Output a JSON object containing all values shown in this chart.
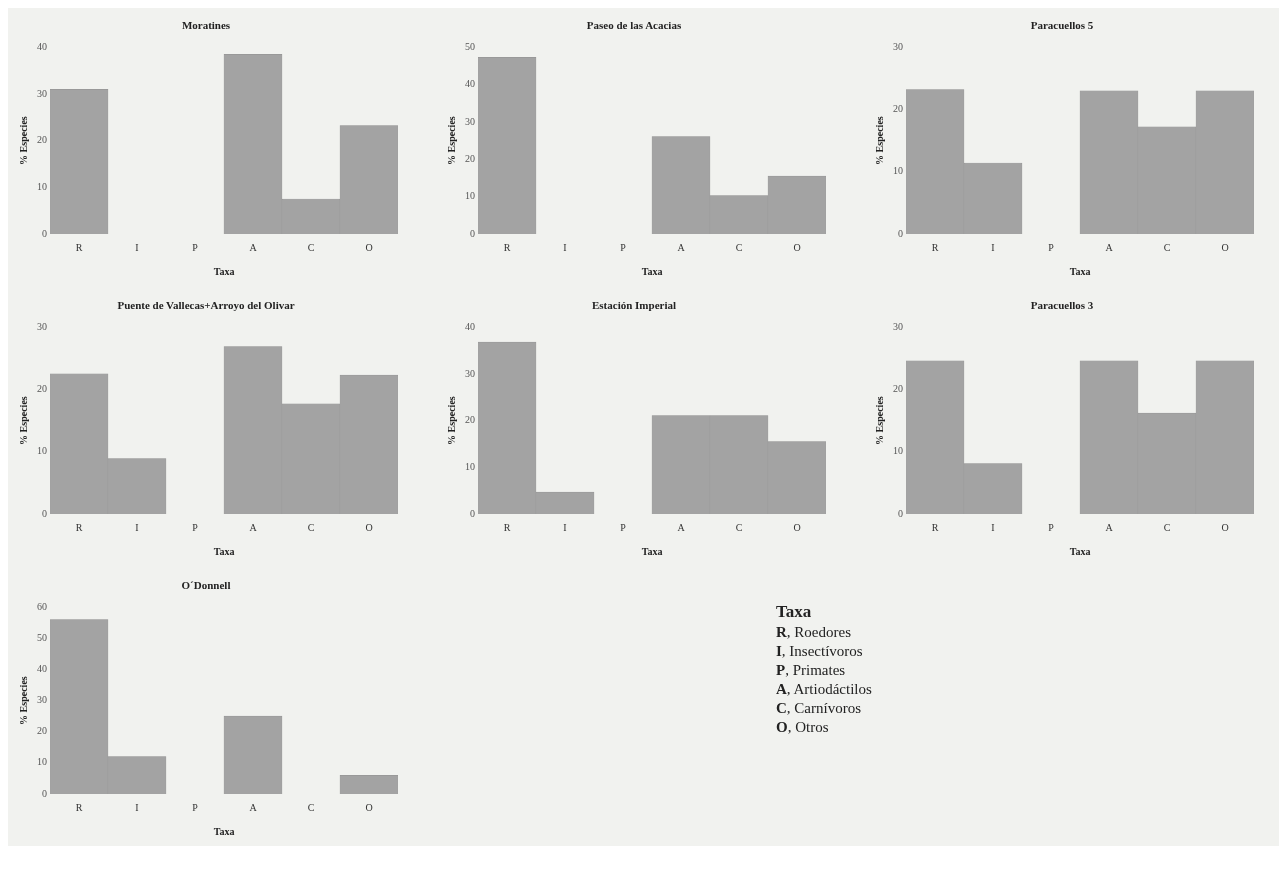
{
  "chart_data": [
    {
      "type": "bar",
      "title": "Moratines",
      "xlabel": "Taxa",
      "ylabel": "% Especies",
      "categories": [
        "R",
        "I",
        "P",
        "A",
        "C",
        "O"
      ],
      "values": [
        31,
        0,
        0,
        38.5,
        7.5,
        23.2
      ],
      "color": "#a3a3a3",
      "ylim": [
        0,
        40
      ],
      "yticks": [
        0,
        10,
        20,
        30,
        40
      ],
      "grid": false,
      "legend": false
    },
    {
      "type": "bar",
      "title": "Paseo de las Acacias",
      "xlabel": "Taxa",
      "ylabel": "% Especies",
      "categories": [
        "R",
        "I",
        "P",
        "A",
        "C",
        "O"
      ],
      "values": [
        47.3,
        0,
        0,
        26.1,
        10.3,
        15.5
      ],
      "color": "#a3a3a3",
      "ylim": [
        0,
        50
      ],
      "yticks": [
        0,
        10,
        20,
        30,
        40,
        50
      ],
      "grid": false,
      "legend": false
    },
    {
      "type": "bar",
      "title": "Paracuellos 5",
      "xlabel": "Taxa",
      "ylabel": "% Especies",
      "categories": [
        "R",
        "I",
        "P",
        "A",
        "C",
        "O"
      ],
      "values": [
        23.2,
        11.4,
        0,
        23,
        17.2,
        23
      ],
      "color": "#a3a3a3",
      "ylim": [
        0,
        30
      ],
      "yticks": [
        0,
        10,
        20,
        30
      ],
      "grid": false,
      "legend": false
    },
    {
      "type": "bar",
      "title": "Puente de Vallecas+Arroyo del Olivar",
      "xlabel": "Taxa",
      "ylabel": "% Especies",
      "categories": [
        "R",
        "I",
        "P",
        "A",
        "C",
        "O"
      ],
      "values": [
        22.5,
        8.9,
        0,
        26.9,
        17.7,
        22.3
      ],
      "color": "#a3a3a3",
      "ylim": [
        0,
        30
      ],
      "yticks": [
        0,
        10,
        20,
        30
      ],
      "grid": false,
      "legend": false
    },
    {
      "type": "bar",
      "title": "Estación Imperial",
      "xlabel": "Taxa",
      "ylabel": "% Especies",
      "categories": [
        "R",
        "I",
        "P",
        "A",
        "C",
        "O"
      ],
      "values": [
        36.8,
        4.7,
        0,
        21.1,
        21.1,
        15.5
      ],
      "color": "#a3a3a3",
      "ylim": [
        0,
        40
      ],
      "yticks": [
        0,
        10,
        20,
        30,
        40
      ],
      "grid": false,
      "legend": false
    },
    {
      "type": "bar",
      "title": "Paracuellos 3",
      "xlabel": "Taxa",
      "ylabel": "% Especies",
      "categories": [
        "R",
        "I",
        "P",
        "A",
        "C",
        "O"
      ],
      "values": [
        24.6,
        8.1,
        0,
        24.6,
        16.2,
        24.6
      ],
      "color": "#a3a3a3",
      "ylim": [
        0,
        30
      ],
      "yticks": [
        0,
        10,
        20,
        30
      ],
      "grid": false,
      "legend": false
    },
    {
      "type": "bar",
      "title": "O´Donnell",
      "xlabel": "Taxa",
      "ylabel": "% Especies",
      "categories": [
        "R",
        "I",
        "P",
        "A",
        "C",
        "O"
      ],
      "values": [
        56,
        12,
        0,
        25,
        0,
        6
      ],
      "color": "#a3a3a3",
      "ylim": [
        0,
        60
      ],
      "yticks": [
        0,
        10,
        20,
        30,
        40,
        50,
        60
      ],
      "grid": false,
      "legend": false
    },
    {
      "type": "other",
      "title": "Taxa",
      "annotations": [
        "R, Roedores",
        "I, Insectívoros",
        "P, Primates",
        "A, Artiodáctilos",
        "C, Carnívoros",
        "O, Otros"
      ]
    }
  ]
}
